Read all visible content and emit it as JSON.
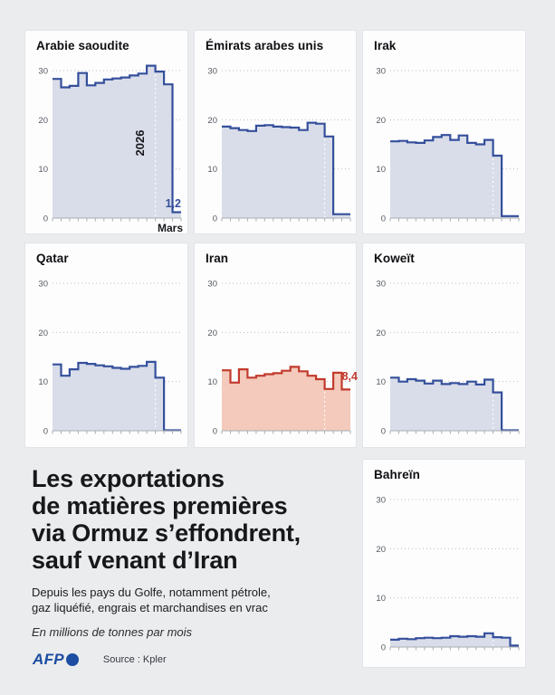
{
  "title_block": {
    "title_lines": [
      "Les exportations",
      "de matières premières",
      "via Ormuz s’effondrent,",
      "sauf venant d’Iran"
    ],
    "subtitle_lines": [
      "Depuis les pays du Golfe, notamment pétrole,",
      "gaz liquéfié, engrais et marchandises en vrac"
    ],
    "unit_note": "En millions de tonnes par mois"
  },
  "footer": {
    "logo_text": "AFP",
    "source": "Source : Kpler"
  },
  "colors": {
    "blue_line": "#344f9b",
    "blue_fill": "#d9dde9",
    "red_line": "#c23a2d",
    "red_fill": "#f3cabb",
    "grid": "#b9bdc3",
    "axis": "#a9adb4",
    "tick_text": "#55595f"
  },
  "chart_data": [
    {
      "type": "area",
      "title": "Arabie saoudite",
      "x_unit": "mois (jan. 2025 – mars 2026)",
      "values": [
        28.3,
        26.6,
        26.9,
        29.5,
        27.0,
        27.5,
        28.2,
        28.4,
        28.6,
        29.0,
        29.4,
        31.0,
        29.8,
        27.2,
        1.2
      ],
      "yticks": [
        0,
        10,
        20,
        30
      ],
      "ylim": [
        0,
        32
      ],
      "line_color": "#344f9b",
      "fill_color": "#d9dde9",
      "year_boundary_index": 12,
      "labels": [
        {
          "text": "2026",
          "x": 131,
          "y": 124,
          "rotate": -90,
          "weight": "bold",
          "size": 13,
          "color": "#17181a",
          "anchor": "middle"
        },
        {
          "text": "1,2",
          "x": 172,
          "y": 195,
          "weight": "bold",
          "size": 12.5,
          "color": "#344f9b",
          "anchor": "end"
        },
        {
          "text": "Mars",
          "x": 174,
          "y": 222,
          "weight": "bold",
          "size": 12,
          "color": "#17181a",
          "anchor": "end"
        }
      ]
    },
    {
      "type": "area",
      "title": "Émirats arabes unis",
      "values": [
        18.6,
        18.3,
        17.9,
        17.7,
        18.8,
        18.9,
        18.6,
        18.5,
        18.4,
        17.9,
        19.4,
        19.2,
        16.6,
        0.8,
        0.8
      ],
      "yticks": [
        0,
        10,
        20,
        30
      ],
      "ylim": [
        0,
        32
      ],
      "line_color": "#344f9b",
      "fill_color": "#d9dde9",
      "year_boundary_index": 12,
      "labels": []
    },
    {
      "type": "area",
      "title": "Irak",
      "values": [
        15.6,
        15.7,
        15.4,
        15.3,
        15.8,
        16.5,
        16.9,
        15.9,
        16.8,
        15.3,
        15.0,
        15.9,
        12.7,
        0.4,
        0.4
      ],
      "yticks": [
        0,
        10,
        20,
        30
      ],
      "ylim": [
        0,
        32
      ],
      "line_color": "#344f9b",
      "fill_color": "#d9dde9",
      "year_boundary_index": 12,
      "labels": []
    },
    {
      "type": "area",
      "title": "Qatar",
      "values": [
        13.5,
        11.2,
        12.5,
        13.8,
        13.6,
        13.3,
        13.1,
        12.8,
        12.6,
        13.0,
        13.2,
        14.0,
        10.8,
        0.1,
        0.1
      ],
      "yticks": [
        0,
        10,
        20,
        30
      ],
      "ylim": [
        0,
        32
      ],
      "line_color": "#344f9b",
      "fill_color": "#d9dde9",
      "year_boundary_index": 12,
      "labels": []
    },
    {
      "type": "area",
      "title": "Iran",
      "values": [
        12.3,
        9.8,
        12.5,
        10.8,
        11.2,
        11.5,
        11.7,
        12.2,
        13.0,
        12.1,
        11.2,
        10.5,
        8.5,
        11.8,
        8.4
      ],
      "yticks": [
        0,
        10,
        20,
        30
      ],
      "ylim": [
        0,
        32
      ],
      "line_color": "#c23a2d",
      "fill_color": "#f3cabb",
      "year_boundary_index": 12,
      "labels": [
        {
          "text": "8,4",
          "x": 180,
          "y": 151,
          "weight": "bold",
          "size": 12.5,
          "color": "#c23a2d",
          "anchor": "end"
        }
      ]
    },
    {
      "type": "area",
      "title": "Koweït",
      "values": [
        10.8,
        10.0,
        10.5,
        10.2,
        9.6,
        10.2,
        9.5,
        9.7,
        9.5,
        10.0,
        9.4,
        10.4,
        7.8,
        0.1,
        0.1
      ],
      "yticks": [
        0,
        10,
        20,
        30
      ],
      "ylim": [
        0,
        32
      ],
      "line_color": "#344f9b",
      "fill_color": "#d9dde9",
      "year_boundary_index": 12,
      "labels": []
    },
    {
      "type": "area",
      "title": "Bahreïn",
      "values": [
        1.5,
        1.7,
        1.6,
        1.8,
        1.9,
        1.8,
        1.9,
        2.2,
        2.1,
        2.2,
        2.1,
        2.8,
        2.0,
        1.9,
        0.3
      ],
      "yticks": [
        0,
        10,
        20,
        30
      ],
      "ylim": [
        0,
        32
      ],
      "line_color": "#344f9b",
      "fill_color": "#d9dde9",
      "year_boundary_index": 12,
      "labels": []
    }
  ]
}
